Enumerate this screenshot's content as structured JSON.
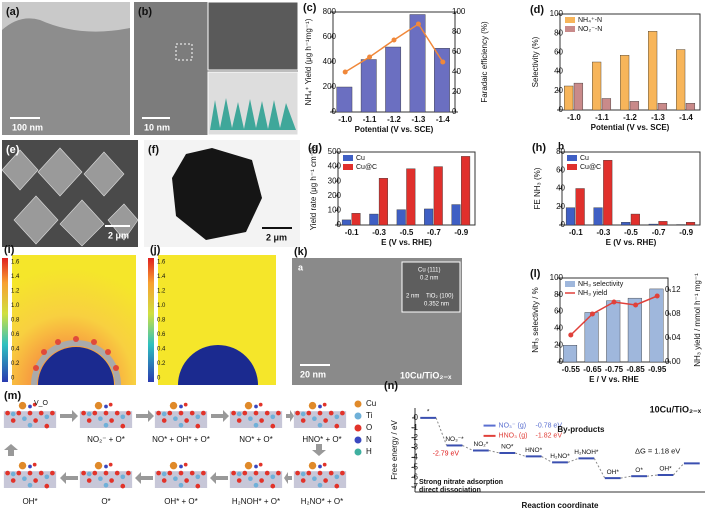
{
  "images": {
    "a": {
      "label": "(a)",
      "scale": "100 nm"
    },
    "b": {
      "label": "(b)",
      "scale": "10 nm"
    },
    "e": {
      "label": "(e)",
      "scale": "2 μm"
    },
    "f": {
      "label": "(f)",
      "scale": "2 μm"
    },
    "i": {
      "label": "(i)",
      "colorbar": [
        "1.6",
        "1.4",
        "1.2",
        "1.0",
        "0.8",
        "0.6",
        "0.4",
        "0.2",
        "0"
      ]
    },
    "j": {
      "label": "(j)",
      "colorbar": [
        "1.6",
        "1.4",
        "1.2",
        "1.0",
        "0.8",
        "0.6",
        "0.4",
        "0.2",
        "0"
      ]
    },
    "k": {
      "label": "(k)",
      "sublabel": "a",
      "scale": "20 nm",
      "inset_scale": "2 nm",
      "cu_plane": "Cu (111)",
      "cu_spacing": "0.2 nm",
      "ti_plane": "TiO₂ (100)",
      "ti_spacing": "0.352 nm",
      "sample": "10Cu/TiO₂₋ₓ"
    }
  },
  "mechanism": {
    "label": "(m)",
    "vacancy": "V_O",
    "legend": [
      "Cu",
      "Ti",
      "O",
      "N",
      "H"
    ],
    "top_steps": [
      "NO₂⁻ + O*",
      "NO* + OH* + O*",
      "NO* + O*",
      "HNO* + O*"
    ],
    "bottom_steps": [
      "OH*",
      "O*",
      "OH* + O*",
      "H₂NOH* + O*",
      "H₂NO* + O*"
    ]
  },
  "chart_data": [
    {
      "type": "bar",
      "label": "(c)",
      "xlabel": "Potential (V vs. SCE)",
      "ylabel": "NH₄⁺ Yield (μg h⁻¹mg⁻¹)",
      "y2label": "Faradaic efficiency (%)",
      "categories": [
        "-1.0",
        "-1.1",
        "-1.2",
        "-1.3",
        "-1.4"
      ],
      "series": [
        {
          "type": "bar",
          "color": "#6b6fc1",
          "values": [
            200,
            420,
            520,
            780,
            510
          ]
        },
        {
          "type": "line",
          "axis": "y2",
          "color": "#f0883a",
          "values": [
            40,
            55,
            72,
            88,
            50
          ]
        }
      ],
      "ylim": [
        0,
        800
      ],
      "yticks": [
        0,
        200,
        400,
        600,
        800
      ],
      "y2lim": [
        0,
        100
      ],
      "y2ticks": [
        0,
        20,
        40,
        60,
        80,
        100
      ]
    },
    {
      "type": "bar",
      "label": "(d)",
      "xlabel": "Potential (V vs. SCE)",
      "ylabel": "Selectivity (%)",
      "categories": [
        "-1.0",
        "-1.1",
        "-1.2",
        "-1.3",
        "-1.4"
      ],
      "series": [
        {
          "name": "NH₄⁺-N",
          "color": "#f7b55a",
          "values": [
            25,
            50,
            57,
            82,
            63
          ]
        },
        {
          "name": "NO₂⁻-N",
          "color": "#c98a8a",
          "values": [
            28,
            12,
            9,
            7,
            7
          ]
        }
      ],
      "ylim": [
        0,
        100
      ],
      "yticks": [
        0,
        20,
        40,
        60,
        80,
        100
      ],
      "legend": "upper left"
    },
    {
      "type": "bar",
      "label": "(g)",
      "xlabel": "E (V vs. RHE)",
      "ylabel": "Yield rate (μg h⁻¹ cm⁻²)",
      "categories": [
        "-0.1",
        "-0.3",
        "-0.5",
        "-0.7",
        "-0.9"
      ],
      "series": [
        {
          "name": "Cu",
          "color": "#3f5fc4",
          "values": [
            35,
            75,
            105,
            110,
            140
          ]
        },
        {
          "name": "Cu@C",
          "color": "#e0302c",
          "values": [
            80,
            320,
            385,
            400,
            470
          ]
        }
      ],
      "ylim": [
        0,
        500
      ],
      "yticks": [
        0,
        100,
        200,
        300,
        400,
        500
      ],
      "legend": "upper left"
    },
    {
      "type": "bar",
      "label": "(h)",
      "sublabel": "b",
      "xlabel": "E (V vs. RHE)",
      "ylabel": "FE NH₃ (%)",
      "categories": [
        "-0.1",
        "-0.3",
        "-0.5",
        "-0.7",
        "-0.9"
      ],
      "series": [
        {
          "name": "Cu",
          "color": "#3f5fc4",
          "values": [
            19,
            19,
            3,
            1,
            0.5
          ]
        },
        {
          "name": "Cu@C",
          "color": "#e0302c",
          "values": [
            40,
            71,
            12,
            4,
            3
          ]
        }
      ],
      "ylim": [
        0,
        80
      ],
      "yticks": [
        0,
        20,
        40,
        60,
        80
      ],
      "legend": "upper left"
    },
    {
      "type": "bar",
      "label": "(l)",
      "xlabel": "E / V vs. RHE",
      "ylabel": "NH₃ selectivity / %",
      "y2label": "NH₃ yield / mmol h⁻¹ mg⁻¹",
      "categories": [
        "-0.55",
        "-0.65",
        "-0.75",
        "-0.85",
        "-0.95"
      ],
      "series": [
        {
          "name": "NH₃ selectivity",
          "type": "bar",
          "color": "#9fb7dc",
          "values": [
            20,
            59,
            73,
            76,
            87
          ]
        },
        {
          "name": "NH₃ yield",
          "type": "line",
          "axis": "y2",
          "color": "#e0403a",
          "values": [
            0.045,
            0.08,
            0.1,
            0.095,
            0.11
          ]
        }
      ],
      "ylim": [
        0,
        100
      ],
      "yticks": [
        0,
        20,
        40,
        60,
        80,
        100
      ],
      "y2lim": [
        0,
        0.14
      ],
      "y2ticks": [
        {
          "value": 0,
          "label": "0.00"
        },
        {
          "value": 0.04,
          "label": "0.04"
        },
        {
          "value": 0.08,
          "label": "0.08"
        },
        {
          "value": 0.12,
          "label": "0.12"
        }
      ],
      "legend": "upper left"
    },
    {
      "type": "energy",
      "label": "(n)",
      "title": "10Cu/TiO₂₋ₓ",
      "xlabel": "Reaction coordinate",
      "ylabel": "Free energy / eV",
      "categories": [
        "*",
        "NO₃⁻*",
        "NO₂*",
        "NO*",
        "HNO*",
        "H₂NO*",
        "H₂NOH*",
        "OH*",
        "O*",
        "OH*",
        null
      ],
      "values": [
        0,
        -2.79,
        -3.3,
        -3.55,
        -3.9,
        -4.5,
        -4.1,
        -6.1,
        -5.9,
        -5.78,
        -4.6
      ],
      "value_labels": [
        null,
        "-2.79 eV",
        null,
        null,
        null,
        null,
        null,
        null,
        null,
        null,
        null
      ],
      "byproducts": {
        "title": "By-products",
        "names": [
          "NO₃⁻ (g)",
          "HNO₃ (g)"
        ],
        "values": [
          -0.78,
          -1.82
        ],
        "value_labels": [
          "-0.78 eV",
          "-1.82 eV"
        ],
        "colors": [
          "#5a6fd0",
          "#e0403a"
        ]
      },
      "annotations": [
        "Strong nitrate adsorption",
        "direct dissociation",
        "ΔG = 1.18 eV"
      ],
      "ylim": [
        -7.5,
        1
      ],
      "yticks": [
        0,
        -1,
        -2,
        -3,
        -4,
        -5,
        -6,
        -7
      ]
    }
  ]
}
